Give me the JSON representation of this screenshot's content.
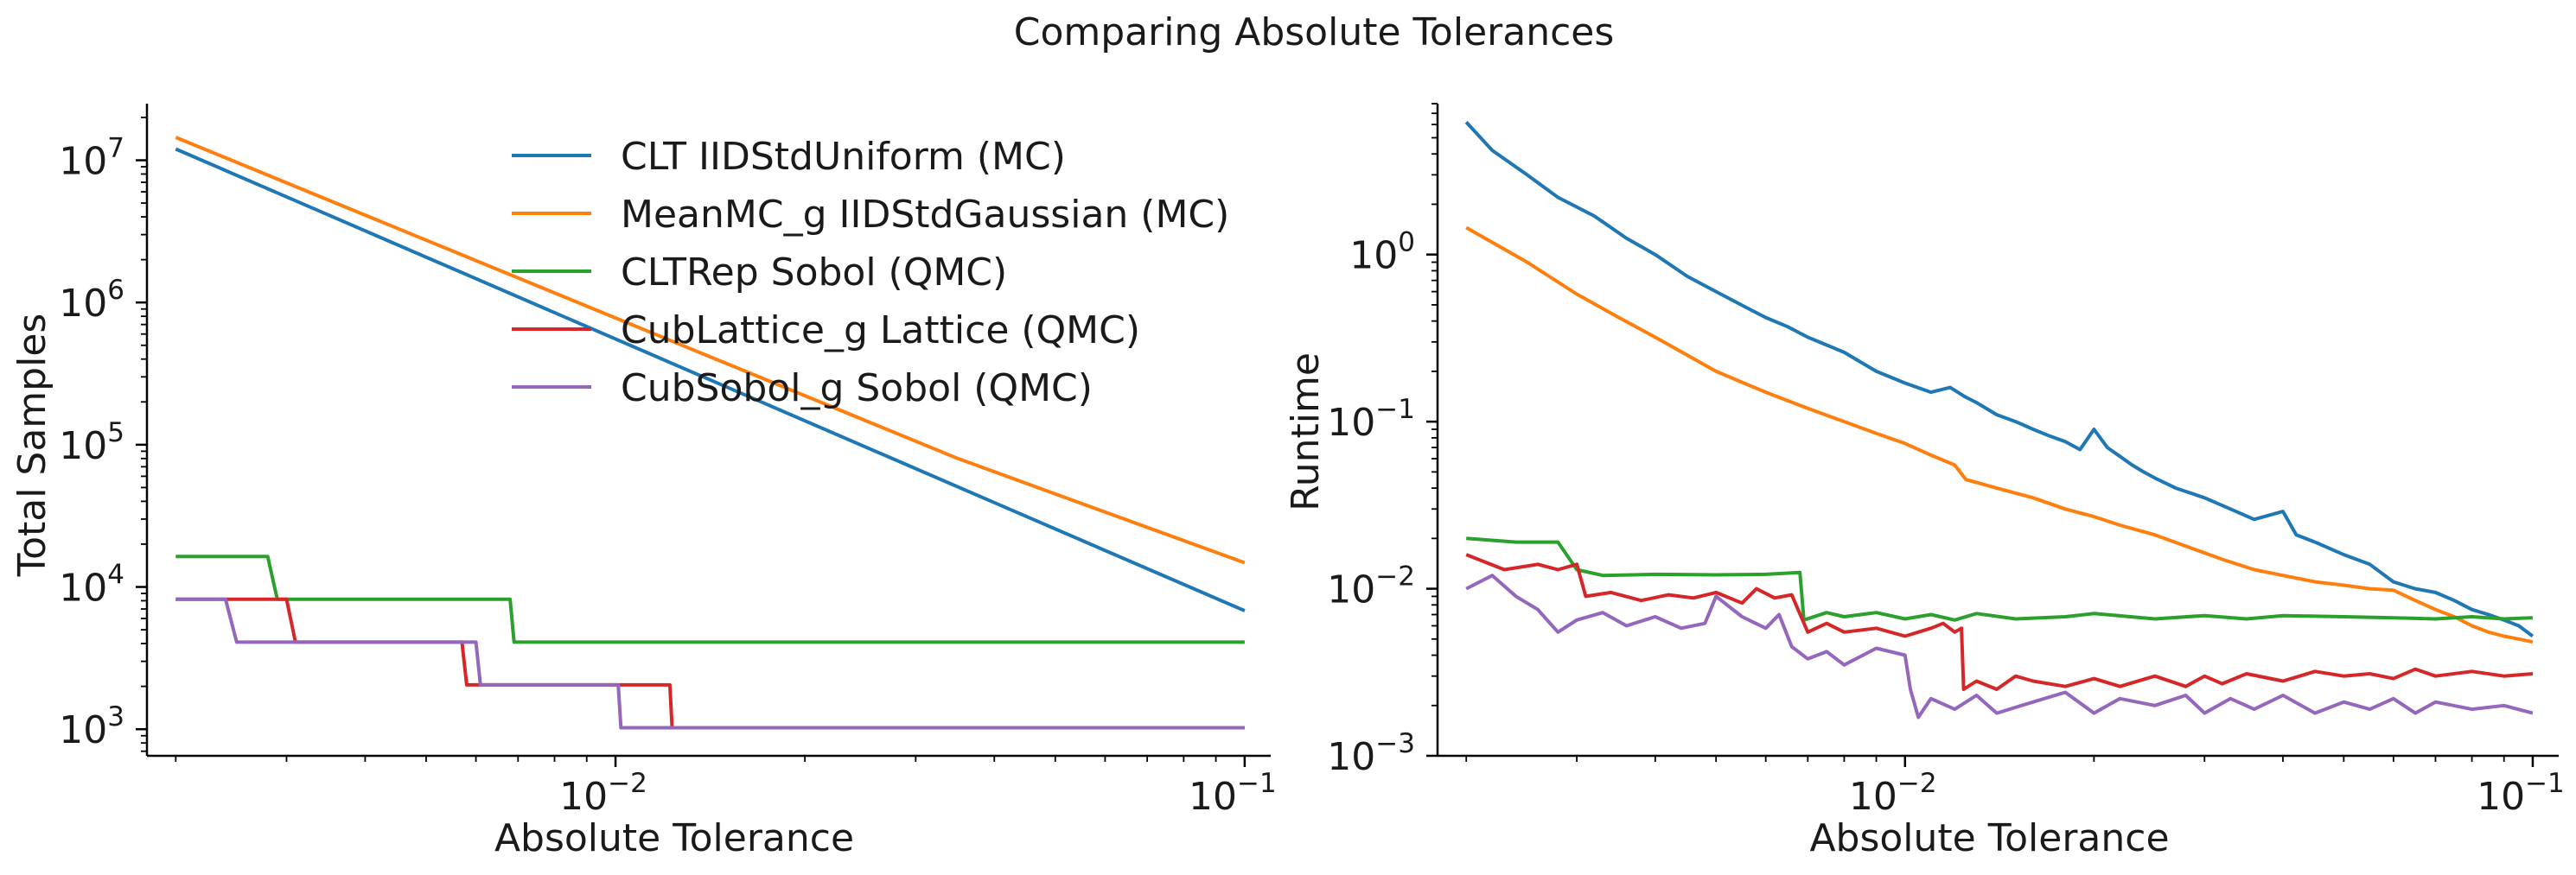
{
  "chart_data": [
    {
      "type": "line",
      "title": "Comparing Absolute Tolerances",
      "xlabel": "Absolute Tolerance",
      "ylabel": "Total Samples",
      "xscale": "log",
      "yscale": "log",
      "xlim": [
        0.0018,
        0.11
      ],
      "ylim": [
        650,
        25000000
      ],
      "xticks": [
        {
          "value": 0.01,
          "label": "10",
          "exp": "−2"
        },
        {
          "value": 0.1,
          "label": "10",
          "exp": "−1"
        }
      ],
      "yticks": [
        {
          "value": 1000,
          "label": "10",
          "exp": "3"
        },
        {
          "value": 10000,
          "label": "10",
          "exp": "4"
        },
        {
          "value": 100000,
          "label": "10",
          "exp": "5"
        },
        {
          "value": 1000000,
          "label": "10",
          "exp": "6"
        },
        {
          "value": 10000000,
          "label": "10",
          "exp": "7"
        }
      ],
      "legend": {
        "placement": "upper-right"
      },
      "series": [
        {
          "name": "CLT IIDStdUniform (MC)",
          "color": "#1f77b4",
          "x": [
            0.002,
            0.1
          ],
          "y": [
            12000000,
            6800
          ]
        },
        {
          "name": "MeanMC_g IIDStdGaussian (MC)",
          "color": "#ff7f0e",
          "x": [
            0.002,
            0.035,
            0.1
          ],
          "y": [
            14500000,
            80000,
            14800
          ]
        },
        {
          "name": "CLTRep Sobol (QMC)",
          "color": "#2ca02c",
          "x": [
            0.002,
            0.0028,
            0.0029,
            0.0068,
            0.0069,
            0.1
          ],
          "y": [
            16384,
            16384,
            8192,
            8192,
            4096,
            4096
          ]
        },
        {
          "name": "CubLattice_g Lattice (QMC)",
          "color": "#d62728",
          "x": [
            0.002,
            0.003,
            0.0031,
            0.0057,
            0.0058,
            0.0122,
            0.0123,
            0.1
          ],
          "y": [
            8192,
            8192,
            4096,
            4096,
            2048,
            2048,
            1024,
            1024
          ]
        },
        {
          "name": "CubSobol_g Sobol (QMC)",
          "color": "#9467bd",
          "x": [
            0.002,
            0.0024,
            0.0025,
            0.006,
            0.0061,
            0.0101,
            0.0102,
            0.1
          ],
          "y": [
            8192,
            8192,
            4096,
            4096,
            2048,
            2048,
            1024,
            1024
          ]
        }
      ]
    },
    {
      "type": "line",
      "title": "",
      "xlabel": "Absolute Tolerance",
      "ylabel": "Runtime",
      "xscale": "log",
      "yscale": "log",
      "xlim": [
        0.0018,
        0.11
      ],
      "ylim": [
        0.001,
        8
      ],
      "xticks": [
        {
          "value": 0.01,
          "label": "10",
          "exp": "−2"
        },
        {
          "value": 0.1,
          "label": "10",
          "exp": "−1"
        }
      ],
      "yticks": [
        {
          "value": 0.001,
          "label": "10",
          "exp": "−3"
        },
        {
          "value": 0.01,
          "label": "10",
          "exp": "−2"
        },
        {
          "value": 0.1,
          "label": "10",
          "exp": "−1"
        },
        {
          "value": 1,
          "label": "10",
          "exp": "0"
        }
      ],
      "series": [
        {
          "name": "CLT IIDStdUniform (MC)",
          "color": "#1f77b4",
          "x": [
            0.002,
            0.0022,
            0.0025,
            0.0028,
            0.0032,
            0.0036,
            0.004,
            0.0045,
            0.005,
            0.0056,
            0.006,
            0.0065,
            0.007,
            0.008,
            0.009,
            0.01,
            0.011,
            0.0118,
            0.0125,
            0.013,
            0.014,
            0.015,
            0.016,
            0.017,
            0.018,
            0.019,
            0.02,
            0.021,
            0.022,
            0.023,
            0.024,
            0.025,
            0.027,
            0.03,
            0.033,
            0.036,
            0.04,
            0.042,
            0.045,
            0.05,
            0.055,
            0.06,
            0.065,
            0.07,
            0.075,
            0.08,
            0.085,
            0.09,
            0.095,
            0.1
          ],
          "y": [
            6.2,
            4.2,
            3.0,
            2.2,
            1.7,
            1.25,
            1.0,
            0.74,
            0.6,
            0.48,
            0.42,
            0.37,
            0.32,
            0.26,
            0.2,
            0.17,
            0.15,
            0.16,
            0.14,
            0.13,
            0.11,
            0.1,
            0.09,
            0.082,
            0.076,
            0.068,
            0.09,
            0.07,
            0.062,
            0.055,
            0.05,
            0.046,
            0.04,
            0.035,
            0.03,
            0.026,
            0.029,
            0.021,
            0.019,
            0.016,
            0.014,
            0.011,
            0.01,
            0.0095,
            0.0085,
            0.0075,
            0.007,
            0.0065,
            0.006,
            0.0052
          ]
        },
        {
          "name": "MeanMC_g IIDStdGaussian (MC)",
          "color": "#ff7f0e",
          "x": [
            0.002,
            0.0025,
            0.003,
            0.0035,
            0.004,
            0.0045,
            0.005,
            0.006,
            0.007,
            0.008,
            0.009,
            0.01,
            0.011,
            0.012,
            0.0125,
            0.014,
            0.016,
            0.018,
            0.02,
            0.022,
            0.025,
            0.028,
            0.032,
            0.036,
            0.04,
            0.045,
            0.05,
            0.055,
            0.06,
            0.065,
            0.07,
            0.075,
            0.08,
            0.085,
            0.09,
            0.095,
            0.1
          ],
          "y": [
            1.45,
            0.9,
            0.58,
            0.42,
            0.32,
            0.25,
            0.2,
            0.15,
            0.12,
            0.1,
            0.085,
            0.074,
            0.063,
            0.055,
            0.045,
            0.04,
            0.035,
            0.03,
            0.027,
            0.024,
            0.021,
            0.018,
            0.015,
            0.013,
            0.012,
            0.011,
            0.0105,
            0.01,
            0.0098,
            0.0085,
            0.0075,
            0.0068,
            0.006,
            0.0055,
            0.0052,
            0.005,
            0.0048
          ]
        },
        {
          "name": "CLTRep Sobol (QMC)",
          "color": "#2ca02c",
          "x": [
            0.002,
            0.0024,
            0.0028,
            0.003,
            0.0033,
            0.004,
            0.005,
            0.006,
            0.0068,
            0.0069,
            0.0075,
            0.008,
            0.009,
            0.01,
            0.011,
            0.012,
            0.013,
            0.015,
            0.018,
            0.02,
            0.025,
            0.03,
            0.035,
            0.04,
            0.05,
            0.06,
            0.07,
            0.08,
            0.09,
            0.1
          ],
          "y": [
            0.02,
            0.019,
            0.019,
            0.013,
            0.012,
            0.0122,
            0.0121,
            0.0122,
            0.0125,
            0.0065,
            0.0072,
            0.0068,
            0.0072,
            0.0066,
            0.007,
            0.0065,
            0.0071,
            0.0066,
            0.0068,
            0.0071,
            0.0066,
            0.0069,
            0.0066,
            0.0069,
            0.0068,
            0.0067,
            0.0066,
            0.0068,
            0.0066,
            0.0067
          ]
        },
        {
          "name": "CubLattice_g Lattice (QMC)",
          "color": "#d62728",
          "x": [
            0.002,
            0.0023,
            0.0026,
            0.0028,
            0.003,
            0.0031,
            0.0034,
            0.0038,
            0.0042,
            0.0046,
            0.005,
            0.0055,
            0.0058,
            0.0062,
            0.0066,
            0.007,
            0.0075,
            0.008,
            0.009,
            0.01,
            0.011,
            0.0115,
            0.012,
            0.0123,
            0.0124,
            0.013,
            0.014,
            0.015,
            0.016,
            0.018,
            0.02,
            0.022,
            0.025,
            0.028,
            0.03,
            0.032,
            0.035,
            0.04,
            0.045,
            0.05,
            0.055,
            0.06,
            0.065,
            0.07,
            0.08,
            0.09,
            0.1
          ],
          "y": [
            0.016,
            0.013,
            0.014,
            0.013,
            0.014,
            0.009,
            0.0095,
            0.0085,
            0.0092,
            0.0088,
            0.0095,
            0.0082,
            0.01,
            0.0088,
            0.0092,
            0.0055,
            0.0062,
            0.0055,
            0.0058,
            0.0052,
            0.0058,
            0.0062,
            0.0055,
            0.0058,
            0.0025,
            0.0028,
            0.0025,
            0.003,
            0.0028,
            0.0026,
            0.0029,
            0.0026,
            0.003,
            0.0026,
            0.003,
            0.0027,
            0.0031,
            0.0028,
            0.0032,
            0.003,
            0.0031,
            0.0029,
            0.0033,
            0.003,
            0.0032,
            0.003,
            0.0031
          ]
        },
        {
          "name": "CubSobol_g Sobol (QMC)",
          "color": "#9467bd",
          "x": [
            0.002,
            0.0022,
            0.0024,
            0.0026,
            0.0028,
            0.003,
            0.0033,
            0.0036,
            0.004,
            0.0044,
            0.0048,
            0.005,
            0.0055,
            0.006,
            0.0063,
            0.0066,
            0.007,
            0.0075,
            0.008,
            0.009,
            0.01,
            0.0102,
            0.0105,
            0.011,
            0.012,
            0.013,
            0.014,
            0.016,
            0.018,
            0.02,
            0.022,
            0.025,
            0.028,
            0.03,
            0.033,
            0.036,
            0.04,
            0.045,
            0.05,
            0.055,
            0.06,
            0.065,
            0.07,
            0.08,
            0.09,
            0.1
          ],
          "y": [
            0.01,
            0.012,
            0.009,
            0.0075,
            0.0055,
            0.0065,
            0.0072,
            0.006,
            0.0068,
            0.0058,
            0.0062,
            0.009,
            0.0068,
            0.0058,
            0.007,
            0.0045,
            0.0038,
            0.0042,
            0.0035,
            0.0044,
            0.004,
            0.0025,
            0.0017,
            0.0022,
            0.0019,
            0.0023,
            0.0018,
            0.0021,
            0.0024,
            0.0018,
            0.0022,
            0.002,
            0.0023,
            0.0018,
            0.0022,
            0.0019,
            0.0023,
            0.0018,
            0.0021,
            0.0019,
            0.0022,
            0.0018,
            0.0021,
            0.0019,
            0.002,
            0.0018
          ]
        }
      ]
    }
  ]
}
